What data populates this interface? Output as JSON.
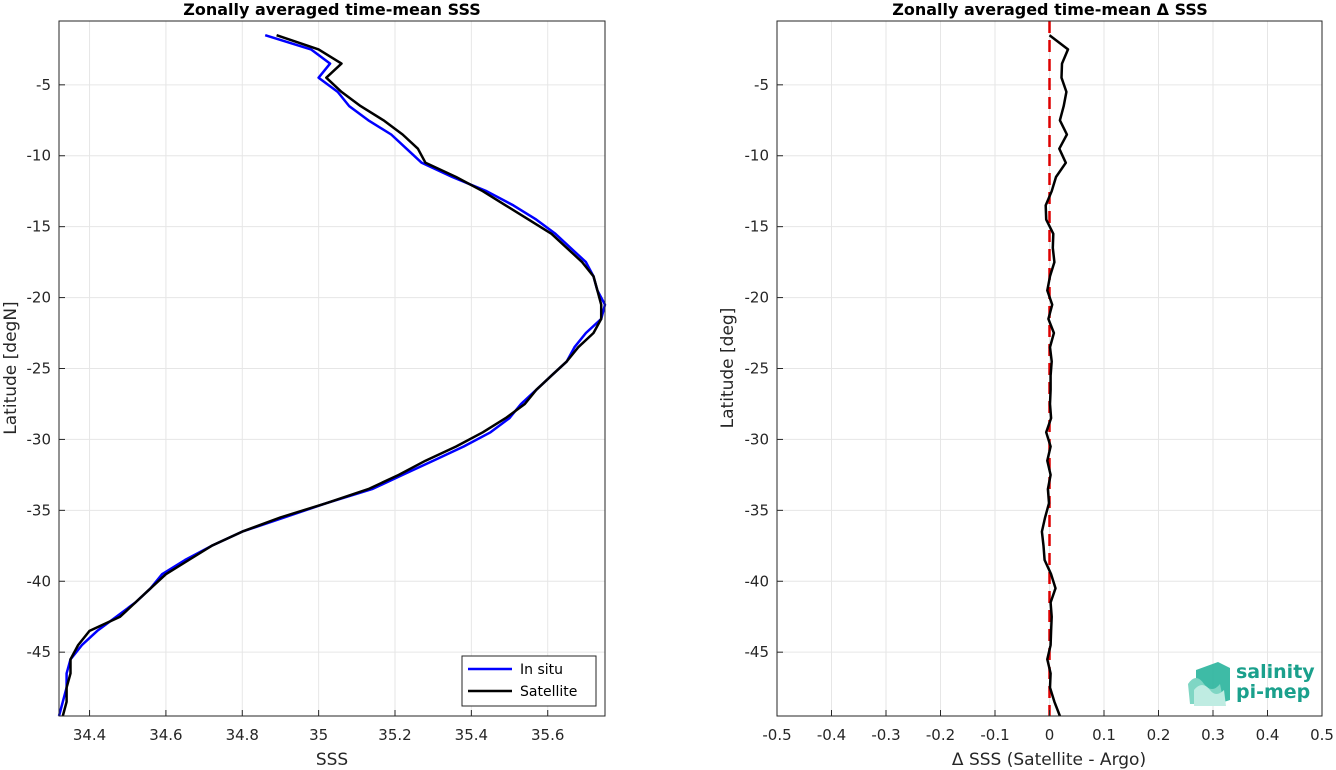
{
  "chart_data": [
    {
      "type": "line",
      "title": "Zonally averaged time-mean SSS",
      "xlabel": "SSS",
      "ylabel": "Latitude [degN]",
      "xlim": [
        34.32,
        35.75
      ],
      "ylim": [
        -49.5,
        -0.5
      ],
      "xticks": [
        34.4,
        34.6,
        34.8,
        35,
        35.2,
        35.4,
        35.6
      ],
      "xtick_labels": [
        "34.4",
        "34.6",
        "34.8",
        "35",
        "35.2",
        "35.4",
        "35.6"
      ],
      "yticks": [
        -5,
        -10,
        -15,
        -20,
        -25,
        -30,
        -35,
        -40,
        -45
      ],
      "ytick_labels": [
        "-5",
        "-10",
        "-15",
        "-20",
        "-25",
        "-30",
        "-35",
        "-40",
        "-45"
      ],
      "grid": true,
      "legend_position": "bottom-right",
      "y": [
        -1.5,
        -2.5,
        -3.5,
        -4.5,
        -5.5,
        -6.5,
        -7.5,
        -8.5,
        -9.5,
        -10.5,
        -11.5,
        -12.5,
        -13.5,
        -14.5,
        -15.5,
        -16.5,
        -17.5,
        -18.5,
        -19.5,
        -20.5,
        -21.5,
        -22.5,
        -23.5,
        -24.5,
        -25.5,
        -26.5,
        -27.5,
        -28.5,
        -29.5,
        -30.5,
        -31.5,
        -32.5,
        -33.5,
        -34.5,
        -35.5,
        -36.5,
        -37.5,
        -38.5,
        -39.5,
        -40.5,
        -41.5,
        -42.5,
        -43.5,
        -44.5,
        -45.5,
        -46.5,
        -47.5,
        -48.5,
        -49.5
      ],
      "series": [
        {
          "name": "In situ",
          "color": "#0000ff",
          "x": [
            34.86,
            34.98,
            35.03,
            35.0,
            35.05,
            35.08,
            35.13,
            35.19,
            35.23,
            35.27,
            35.35,
            35.44,
            35.51,
            35.57,
            35.62,
            35.66,
            35.7,
            35.72,
            35.73,
            35.75,
            35.74,
            35.7,
            35.67,
            35.65,
            35.61,
            35.57,
            35.53,
            35.5,
            35.45,
            35.38,
            35.3,
            35.22,
            35.14,
            35.02,
            34.91,
            34.8,
            34.72,
            34.65,
            34.59,
            34.56,
            34.52,
            34.47,
            34.42,
            34.38,
            34.35,
            34.34,
            34.34,
            34.33,
            34.32
          ]
        },
        {
          "name": "Satellite",
          "color": "#000000",
          "x": [
            34.89,
            35.0,
            35.06,
            35.02,
            35.06,
            35.11,
            35.17,
            35.22,
            35.26,
            35.28,
            35.36,
            35.43,
            35.49,
            35.55,
            35.61,
            35.65,
            35.69,
            35.72,
            35.73,
            35.74,
            35.74,
            35.72,
            35.68,
            35.65,
            35.61,
            35.57,
            35.54,
            35.49,
            35.43,
            35.36,
            35.28,
            35.21,
            35.13,
            35.02,
            34.9,
            34.8,
            34.72,
            34.66,
            34.6,
            34.56,
            34.52,
            34.48,
            34.4,
            34.37,
            34.35,
            34.35,
            34.34,
            34.34,
            34.33
          ]
        }
      ]
    },
    {
      "type": "line",
      "title": "Zonally averaged time-mean Δ SSS",
      "xlabel": "Δ SSS (Satellite - Argo)",
      "ylabel": "Latitude [deg]",
      "xlim": [
        -0.5,
        0.5
      ],
      "ylim": [
        -49.5,
        -0.5
      ],
      "xticks": [
        -0.5,
        -0.4,
        -0.3,
        -0.2,
        -0.1,
        0,
        0.1,
        0.2,
        0.3,
        0.4,
        0.5
      ],
      "xtick_labels": [
        "-0.5",
        "-0.4",
        "-0.3",
        "-0.2",
        "-0.1",
        "0",
        "0.1",
        "0.2",
        "0.3",
        "0.4",
        "0.5"
      ],
      "yticks": [
        -5,
        -10,
        -15,
        -20,
        -25,
        -30,
        -35,
        -40,
        -45
      ],
      "ytick_labels": [
        "-5",
        "-10",
        "-15",
        "-20",
        "-25",
        "-30",
        "-35",
        "-40",
        "-45"
      ],
      "grid": true,
      "reference_line": {
        "x": 0,
        "color": "#dd0000",
        "style": "dashed"
      },
      "y": [
        -1.5,
        -2.5,
        -3.5,
        -4.5,
        -5.5,
        -6.5,
        -7.5,
        -8.5,
        -9.5,
        -10.5,
        -11.5,
        -12.5,
        -13.5,
        -14.5,
        -15.5,
        -16.5,
        -17.5,
        -18.5,
        -19.5,
        -20.5,
        -21.5,
        -22.5,
        -23.5,
        -24.5,
        -25.5,
        -26.5,
        -27.5,
        -28.5,
        -29.5,
        -30.5,
        -31.5,
        -32.5,
        -33.5,
        -34.5,
        -35.5,
        -36.5,
        -37.5,
        -38.5,
        -39.5,
        -40.5,
        -41.5,
        -42.5,
        -43.5,
        -44.5,
        -45.5,
        -46.5,
        -47.5,
        -48.5,
        -49.5
      ],
      "series": [
        {
          "name": "",
          "color": "#000000",
          "x": [
            0.0,
            0.034,
            0.023,
            0.022,
            0.031,
            0.026,
            0.019,
            0.032,
            0.018,
            0.03,
            0.012,
            0.004,
            -0.007,
            -0.006,
            0.007,
            0.006,
            0.009,
            0.001,
            -0.004,
            0.005,
            -0.002,
            0.008,
            0.001,
            0.004,
            0.002,
            0.002,
            0.001,
            0.003,
            -0.006,
            0.002,
            -0.004,
            0.002,
            -0.003,
            -0.001,
            -0.008,
            -0.014,
            -0.011,
            -0.009,
            0.003,
            0.011,
            0.002,
            0.004,
            0.003,
            0.002,
            -0.004,
            0.002,
            0.001,
            0.009,
            0.019
          ]
        }
      ]
    }
  ],
  "logo": {
    "line1": "salinity",
    "line2": "pi-mep",
    "color": "#1aa08c"
  }
}
